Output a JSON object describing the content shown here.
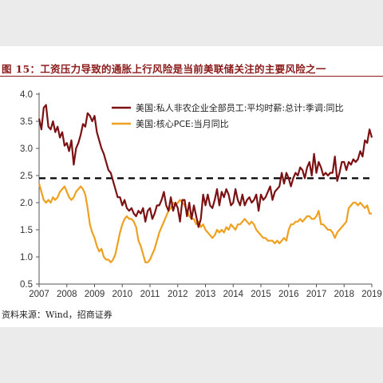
{
  "figure": {
    "title": "图 15：工资压力导致的通胀上行风险是当前美联储关注的主要风险之一",
    "source": "资料来源：Wind，招商证券"
  },
  "chart_data": {
    "type": "line",
    "title": "图 15：工资压力导致的通胀上行风险是当前美联储关注的主要风险之一",
    "xlabel": "",
    "ylabel": "",
    "xlim": [
      "2007-01",
      "2019-01"
    ],
    "ylim": [
      0.5,
      4.0
    ],
    "x_ticks": [
      "2007",
      "2008",
      "2009",
      "2010",
      "2011",
      "2012",
      "2013",
      "2014",
      "2015",
      "2016",
      "2017",
      "2018",
      "2019"
    ],
    "y_ticks": [
      "0.5",
      "1.0",
      "1.5",
      "2.0",
      "2.5",
      "3.0",
      "3.5",
      "4.0"
    ],
    "grid": false,
    "legend": "top-right",
    "reference_line": {
      "y": 2.45,
      "style": "dashed",
      "color": "#000000"
    },
    "series": [
      {
        "name": "美国:私人非农企业全部员工:平均时薪:总计:季调:同比",
        "color": "#7b1113",
        "points": [
          [
            "2007-01",
            3.55
          ],
          [
            "2007-02",
            3.35
          ],
          [
            "2007-03",
            3.75
          ],
          [
            "2007-04",
            3.8
          ],
          [
            "2007-05",
            3.4
          ],
          [
            "2007-06",
            3.35
          ],
          [
            "2007-07",
            3.5
          ],
          [
            "2007-08",
            3.3
          ],
          [
            "2007-09",
            3.4
          ],
          [
            "2007-10",
            3.2
          ],
          [
            "2007-11",
            3.3
          ],
          [
            "2007-12",
            3.05
          ],
          [
            "2008-01",
            3.1
          ],
          [
            "2008-02",
            2.95
          ],
          [
            "2008-03",
            3.15
          ],
          [
            "2008-04",
            2.7
          ],
          [
            "2008-05",
            3.0
          ],
          [
            "2008-06",
            3.1
          ],
          [
            "2008-07",
            3.25
          ],
          [
            "2008-08",
            3.45
          ],
          [
            "2008-09",
            3.4
          ],
          [
            "2008-10",
            3.65
          ],
          [
            "2008-11",
            3.6
          ],
          [
            "2008-12",
            3.5
          ],
          [
            "2009-01",
            3.6
          ],
          [
            "2009-02",
            3.3
          ],
          [
            "2009-03",
            3.15
          ],
          [
            "2009-04",
            3.0
          ],
          [
            "2009-05",
            2.9
          ],
          [
            "2009-06",
            2.75
          ],
          [
            "2009-07",
            2.6
          ],
          [
            "2009-08",
            2.55
          ],
          [
            "2009-09",
            2.4
          ],
          [
            "2009-10",
            2.25
          ],
          [
            "2009-11",
            2.1
          ],
          [
            "2009-12",
            2.1
          ],
          [
            "2010-01",
            1.95
          ],
          [
            "2010-02",
            2.05
          ],
          [
            "2010-03",
            1.9
          ],
          [
            "2010-04",
            1.85
          ],
          [
            "2010-05",
            1.9
          ],
          [
            "2010-06",
            1.8
          ],
          [
            "2010-07",
            1.75
          ],
          [
            "2010-08",
            1.85
          ],
          [
            "2010-09",
            1.8
          ],
          [
            "2010-10",
            1.9
          ],
          [
            "2010-11",
            1.65
          ],
          [
            "2010-12",
            1.85
          ],
          [
            "2011-01",
            1.9
          ],
          [
            "2011-02",
            1.7
          ],
          [
            "2011-03",
            1.8
          ],
          [
            "2011-04",
            1.95
          ],
          [
            "2011-05",
            1.95
          ],
          [
            "2011-06",
            2.05
          ],
          [
            "2011-07",
            2.2
          ],
          [
            "2011-08",
            1.95
          ],
          [
            "2011-09",
            1.85
          ],
          [
            "2011-10",
            2.1
          ],
          [
            "2011-11",
            1.85
          ],
          [
            "2011-12",
            2.0
          ],
          [
            "2012-01",
            1.9
          ],
          [
            "2012-02",
            1.65
          ],
          [
            "2012-03",
            2.05
          ],
          [
            "2012-04",
            2.05
          ],
          [
            "2012-05",
            1.75
          ],
          [
            "2012-06",
            2.0
          ],
          [
            "2012-07",
            1.7
          ],
          [
            "2012-08",
            1.95
          ],
          [
            "2012-09",
            1.75
          ],
          [
            "2012-10",
            1.55
          ],
          [
            "2012-11",
            1.7
          ],
          [
            "2012-12",
            2.15
          ],
          [
            "2013-01",
            1.95
          ],
          [
            "2013-02",
            2.15
          ],
          [
            "2013-03",
            1.95
          ],
          [
            "2013-04",
            1.9
          ],
          [
            "2013-05",
            2.05
          ],
          [
            "2013-06",
            2.25
          ],
          [
            "2013-07",
            1.95
          ],
          [
            "2013-08",
            2.2
          ],
          [
            "2013-09",
            2.1
          ],
          [
            "2013-10",
            2.25
          ],
          [
            "2013-11",
            2.15
          ],
          [
            "2013-12",
            1.95
          ],
          [
            "2014-01",
            2.0
          ],
          [
            "2014-02",
            2.25
          ],
          [
            "2014-03",
            2.05
          ],
          [
            "2014-04",
            1.95
          ],
          [
            "2014-05",
            2.15
          ],
          [
            "2014-06",
            1.95
          ],
          [
            "2014-07",
            2.05
          ],
          [
            "2014-08",
            2.1
          ],
          [
            "2014-09",
            2.0
          ],
          [
            "2014-10",
            2.05
          ],
          [
            "2014-11",
            2.15
          ],
          [
            "2014-12",
            1.85
          ],
          [
            "2015-01",
            2.15
          ],
          [
            "2015-02",
            2.05
          ],
          [
            "2015-03",
            2.1
          ],
          [
            "2015-04",
            2.2
          ],
          [
            "2015-05",
            2.3
          ],
          [
            "2015-06",
            2.05
          ],
          [
            "2015-07",
            2.2
          ],
          [
            "2015-08",
            2.25
          ],
          [
            "2015-09",
            2.3
          ],
          [
            "2015-10",
            2.55
          ],
          [
            "2015-11",
            2.35
          ],
          [
            "2015-12",
            2.55
          ],
          [
            "2016-01",
            2.45
          ],
          [
            "2016-02",
            2.3
          ],
          [
            "2016-03",
            2.45
          ],
          [
            "2016-04",
            2.55
          ],
          [
            "2016-05",
            2.5
          ],
          [
            "2016-06",
            2.65
          ],
          [
            "2016-07",
            2.6
          ],
          [
            "2016-08",
            2.45
          ],
          [
            "2016-09",
            2.65
          ],
          [
            "2016-10",
            2.75
          ],
          [
            "2016-11",
            2.5
          ],
          [
            "2016-12",
            2.9
          ],
          [
            "2017-01",
            2.55
          ],
          [
            "2017-02",
            2.75
          ],
          [
            "2017-03",
            2.65
          ],
          [
            "2017-04",
            2.5
          ],
          [
            "2017-05",
            2.55
          ],
          [
            "2017-06",
            2.5
          ],
          [
            "2017-07",
            2.55
          ],
          [
            "2017-08",
            2.55
          ],
          [
            "2017-09",
            2.85
          ],
          [
            "2017-10",
            2.4
          ],
          [
            "2017-11",
            2.55
          ],
          [
            "2017-12",
            2.75
          ],
          [
            "2018-01",
            2.75
          ],
          [
            "2018-02",
            2.6
          ],
          [
            "2018-03",
            2.75
          ],
          [
            "2018-04",
            2.7
          ],
          [
            "2018-05",
            2.8
          ],
          [
            "2018-06",
            2.75
          ],
          [
            "2018-07",
            2.8
          ],
          [
            "2018-08",
            2.95
          ],
          [
            "2018-09",
            2.85
          ],
          [
            "2018-10",
            3.15
          ],
          [
            "2018-11",
            3.1
          ],
          [
            "2018-12",
            3.35
          ],
          [
            "2019-01",
            3.2
          ]
        ]
      },
      {
        "name": "美国:核心PCE:当月同比",
        "color": "#f0a020",
        "points": [
          [
            "2007-01",
            2.35
          ],
          [
            "2007-02",
            2.2
          ],
          [
            "2007-03",
            2.05
          ],
          [
            "2007-04",
            2.0
          ],
          [
            "2007-05",
            2.05
          ],
          [
            "2007-06",
            2.0
          ],
          [
            "2007-07",
            2.1
          ],
          [
            "2007-08",
            2.05
          ],
          [
            "2007-09",
            2.1
          ],
          [
            "2007-10",
            2.2
          ],
          [
            "2007-11",
            2.25
          ],
          [
            "2007-12",
            2.3
          ],
          [
            "2008-01",
            2.2
          ],
          [
            "2008-02",
            2.1
          ],
          [
            "2008-03",
            2.05
          ],
          [
            "2008-04",
            2.1
          ],
          [
            "2008-05",
            2.2
          ],
          [
            "2008-06",
            2.25
          ],
          [
            "2008-07",
            2.3
          ],
          [
            "2008-08",
            2.25
          ],
          [
            "2008-09",
            2.15
          ],
          [
            "2008-10",
            1.9
          ],
          [
            "2008-11",
            1.6
          ],
          [
            "2008-12",
            1.45
          ],
          [
            "2009-01",
            1.35
          ],
          [
            "2009-02",
            1.2
          ],
          [
            "2009-03",
            1.1
          ],
          [
            "2009-04",
            1.15
          ],
          [
            "2009-05",
            1.0
          ],
          [
            "2009-06",
            0.95
          ],
          [
            "2009-07",
            0.95
          ],
          [
            "2009-08",
            0.9
          ],
          [
            "2009-09",
            0.95
          ],
          [
            "2009-10",
            1.05
          ],
          [
            "2009-11",
            1.25
          ],
          [
            "2009-12",
            1.45
          ],
          [
            "2010-01",
            1.6
          ],
          [
            "2010-02",
            1.7
          ],
          [
            "2010-03",
            1.75
          ],
          [
            "2010-04",
            1.7
          ],
          [
            "2010-05",
            1.7
          ],
          [
            "2010-06",
            1.65
          ],
          [
            "2010-07",
            1.55
          ],
          [
            "2010-08",
            1.3
          ],
          [
            "2010-09",
            1.2
          ],
          [
            "2010-10",
            1.05
          ],
          [
            "2010-11",
            0.9
          ],
          [
            "2010-12",
            0.9
          ],
          [
            "2011-01",
            0.95
          ],
          [
            "2011-02",
            1.05
          ],
          [
            "2011-03",
            1.15
          ],
          [
            "2011-04",
            1.3
          ],
          [
            "2011-05",
            1.45
          ],
          [
            "2011-06",
            1.55
          ],
          [
            "2011-07",
            1.65
          ],
          [
            "2011-08",
            1.75
          ],
          [
            "2011-09",
            1.85
          ],
          [
            "2011-10",
            1.9
          ],
          [
            "2011-11",
            2.0
          ],
          [
            "2011-12",
            1.95
          ],
          [
            "2012-01",
            2.0
          ],
          [
            "2012-02",
            2.05
          ],
          [
            "2012-03",
            2.0
          ],
          [
            "2012-04",
            1.95
          ],
          [
            "2012-05",
            1.85
          ],
          [
            "2012-06",
            1.75
          ],
          [
            "2012-07",
            1.7
          ],
          [
            "2012-08",
            1.7
          ],
          [
            "2012-09",
            1.6
          ],
          [
            "2012-10",
            1.65
          ],
          [
            "2012-11",
            1.55
          ],
          [
            "2012-12",
            1.6
          ],
          [
            "2013-01",
            1.5
          ],
          [
            "2013-02",
            1.45
          ],
          [
            "2013-03",
            1.4
          ],
          [
            "2013-04",
            1.35
          ],
          [
            "2013-05",
            1.4
          ],
          [
            "2013-06",
            1.5
          ],
          [
            "2013-07",
            1.45
          ],
          [
            "2013-08",
            1.5
          ],
          [
            "2013-09",
            1.45
          ],
          [
            "2013-10",
            1.55
          ],
          [
            "2013-11",
            1.5
          ],
          [
            "2013-12",
            1.6
          ],
          [
            "2014-01",
            1.55
          ],
          [
            "2014-02",
            1.5
          ],
          [
            "2014-03",
            1.6
          ],
          [
            "2014-04",
            1.6
          ],
          [
            "2014-05",
            1.65
          ],
          [
            "2014-06",
            1.7
          ],
          [
            "2014-07",
            1.65
          ],
          [
            "2014-08",
            1.6
          ],
          [
            "2014-09",
            1.65
          ],
          [
            "2014-10",
            1.6
          ],
          [
            "2014-11",
            1.5
          ],
          [
            "2014-12",
            1.45
          ],
          [
            "2015-01",
            1.4
          ],
          [
            "2015-02",
            1.35
          ],
          [
            "2015-03",
            1.35
          ],
          [
            "2015-04",
            1.3
          ],
          [
            "2015-05",
            1.3
          ],
          [
            "2015-06",
            1.3
          ],
          [
            "2015-07",
            1.25
          ],
          [
            "2015-08",
            1.3
          ],
          [
            "2015-09",
            1.25
          ],
          [
            "2015-10",
            1.3
          ],
          [
            "2015-11",
            1.35
          ],
          [
            "2015-12",
            1.3
          ],
          [
            "2016-01",
            1.5
          ],
          [
            "2016-02",
            1.6
          ],
          [
            "2016-03",
            1.6
          ],
          [
            "2016-04",
            1.65
          ],
          [
            "2016-05",
            1.65
          ],
          [
            "2016-06",
            1.7
          ],
          [
            "2016-07",
            1.65
          ],
          [
            "2016-08",
            1.7
          ],
          [
            "2016-09",
            1.75
          ],
          [
            "2016-10",
            1.75
          ],
          [
            "2016-11",
            1.7
          ],
          [
            "2016-12",
            1.7
          ],
          [
            "2017-01",
            1.75
          ],
          [
            "2017-02",
            1.85
          ],
          [
            "2017-03",
            1.6
          ],
          [
            "2017-04",
            1.6
          ],
          [
            "2017-05",
            1.55
          ],
          [
            "2017-06",
            1.5
          ],
          [
            "2017-07",
            1.5
          ],
          [
            "2017-08",
            1.45
          ],
          [
            "2017-09",
            1.35
          ],
          [
            "2017-10",
            1.45
          ],
          [
            "2017-11",
            1.5
          ],
          [
            "2017-12",
            1.55
          ],
          [
            "2018-01",
            1.6
          ],
          [
            "2018-02",
            1.65
          ],
          [
            "2018-03",
            1.9
          ],
          [
            "2018-04",
            1.95
          ],
          [
            "2018-05",
            2.0
          ],
          [
            "2018-06",
            2.0
          ],
          [
            "2018-07",
            1.95
          ],
          [
            "2018-08",
            2.0
          ],
          [
            "2018-09",
            1.95
          ],
          [
            "2018-10",
            1.9
          ],
          [
            "2018-11",
            1.95
          ],
          [
            "2018-12",
            1.8
          ],
          [
            "2019-01",
            1.8
          ]
        ]
      }
    ]
  }
}
